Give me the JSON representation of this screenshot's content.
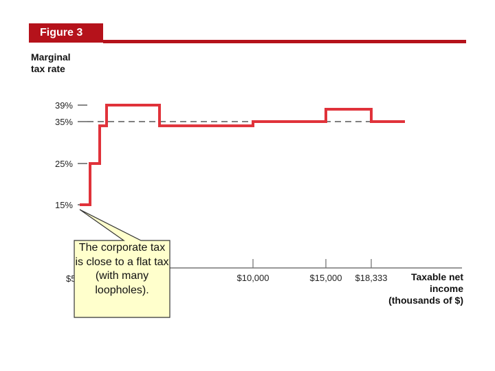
{
  "figure": {
    "label": "Figure 3"
  },
  "chart_data": {
    "type": "line",
    "ylabel_lines": [
      "Marginal",
      "tax rate"
    ],
    "xlabel_lines": [
      "Taxable net",
      "income",
      "(thousands of $)"
    ],
    "yticks": [
      {
        "label": "15%",
        "value": 15
      },
      {
        "label": "25%",
        "value": 25
      },
      {
        "label": "35%",
        "value": 35
      },
      {
        "label": "39%",
        "value": 39
      }
    ],
    "xticks": [
      {
        "label": "$10,000",
        "value": 10000
      },
      {
        "label": "$15,000",
        "value": 15000
      },
      {
        "label": "$18,333",
        "value": 18333
      }
    ],
    "x_origin_label": "$5",
    "reference_line": {
      "value": 35,
      "style": "dashed"
    },
    "series": [
      {
        "color": "#e0323a",
        "points": [
          [
            50,
            15
          ],
          [
            75,
            15
          ],
          [
            75,
            25
          ],
          [
            100,
            25
          ],
          [
            100,
            34
          ],
          [
            335,
            34
          ],
          [
            335,
            39
          ],
          [
            5000,
            39
          ],
          [
            5000,
            34
          ],
          [
            10000,
            34
          ],
          [
            10000,
            35
          ],
          [
            15000,
            35
          ],
          [
            15000,
            38
          ],
          [
            18333,
            38
          ],
          [
            18333,
            35
          ],
          [
            21000,
            35
          ]
        ]
      }
    ]
  },
  "callout": {
    "text": "The corporate tax is close to a flat tax (with many loopholes)."
  }
}
